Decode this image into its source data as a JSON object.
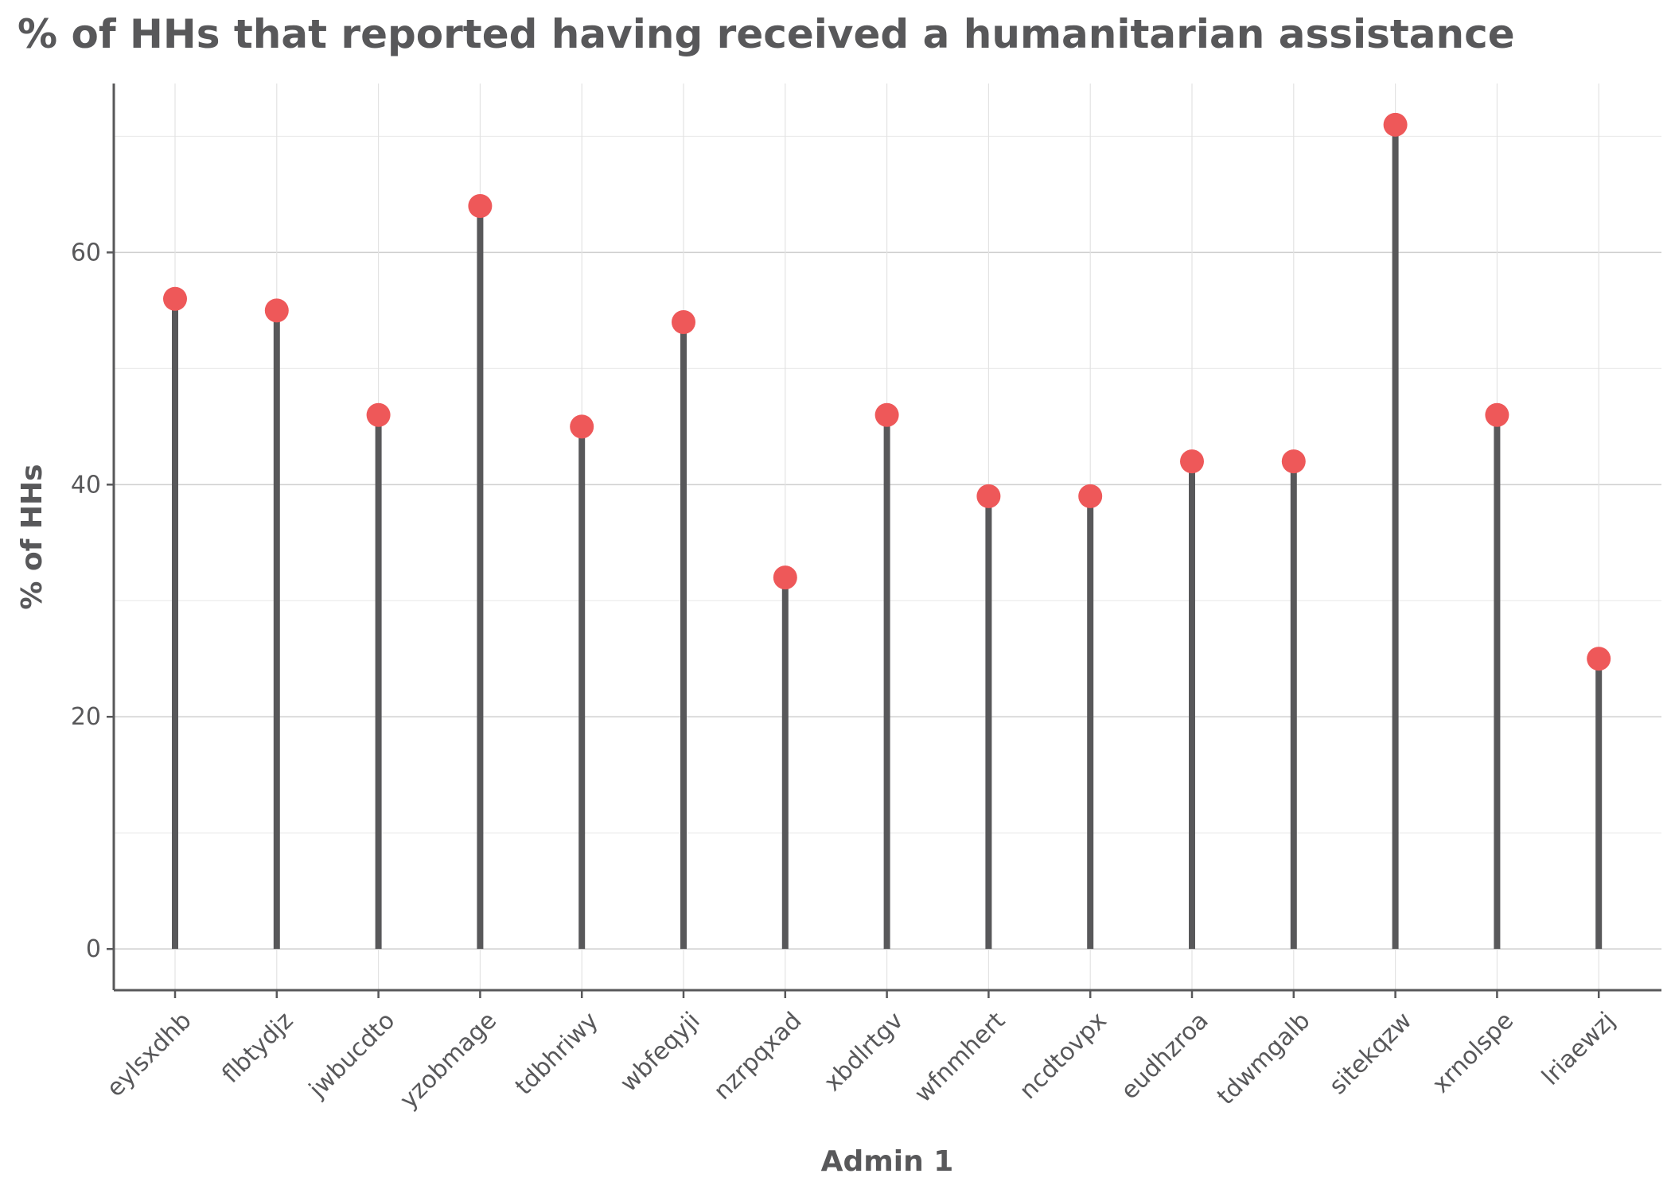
{
  "chart_data": {
    "type": "lollipop",
    "title": "% of HHs that reported having received a humanitarian assistance",
    "xlabel": "Admin 1",
    "ylabel": "% of HHs",
    "categories": [
      "eylsxdhb",
      "flbtydjz",
      "jwbucdto",
      "yzobmage",
      "tdbhriwy",
      "wbfeqyji",
      "nzrpqxad",
      "xbdlrtgv",
      "wfnmhert",
      "ncdtovpx",
      "eudhzroa",
      "tdwmgalb",
      "sitekqzw",
      "xrnolspe",
      "lriaewzj"
    ],
    "values": [
      56,
      55,
      46,
      64,
      45,
      54,
      32,
      46,
      39,
      39,
      42,
      42,
      71,
      46,
      25
    ],
    "yticks": [
      "0",
      "20",
      "40",
      "60"
    ],
    "ylim": [
      -3.55,
      74.55
    ],
    "grid": true,
    "colors": {
      "point": "#EE5859",
      "stem": "#58585A",
      "text": "#58585A"
    }
  }
}
